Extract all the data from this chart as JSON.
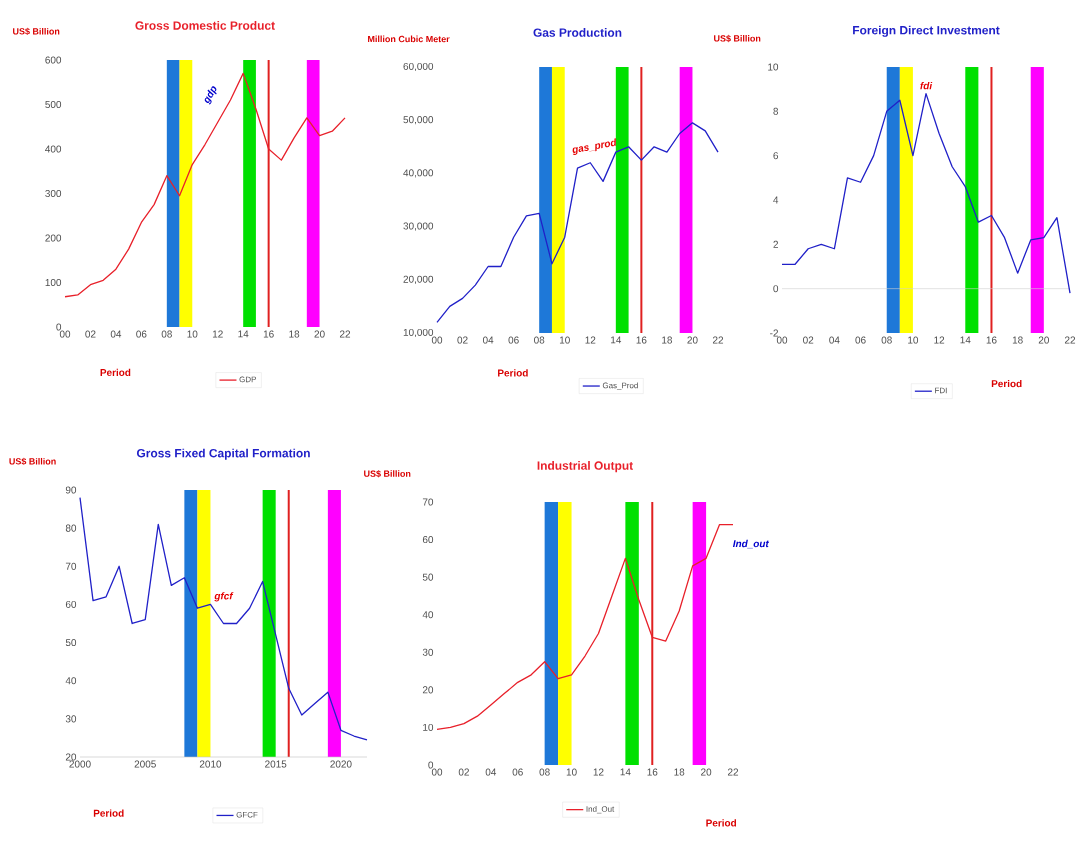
{
  "chart_data": [
    {
      "type": "line",
      "title": "Gross Domestic Product",
      "ylabel": "US$ Billion",
      "xlabel": "Period",
      "legend": "bottom",
      "marker": "none",
      "x": [
        2000,
        2001,
        2002,
        2003,
        2004,
        2005,
        2006,
        2007,
        2008,
        2009,
        2010,
        2011,
        2012,
        2013,
        2014,
        2015,
        2016,
        2017,
        2018,
        2019,
        2020,
        2021,
        2022
      ],
      "xlim": [
        2000,
        2022
      ],
      "xticks": [
        {
          "value": 2000,
          "label": "00"
        },
        {
          "value": 2002,
          "label": "02"
        },
        {
          "value": 2004,
          "label": "04"
        },
        {
          "value": 2006,
          "label": "06"
        },
        {
          "value": 2008,
          "label": "08"
        },
        {
          "value": 2010,
          "label": "10"
        },
        {
          "value": 2012,
          "label": "12"
        },
        {
          "value": 2014,
          "label": "14"
        },
        {
          "value": 2016,
          "label": "16"
        },
        {
          "value": 2018,
          "label": "18"
        },
        {
          "value": 2020,
          "label": "20"
        },
        {
          "value": 2022,
          "label": "22"
        }
      ],
      "ylim": [
        0,
        600
      ],
      "yticks": [
        0,
        100,
        200,
        300,
        400,
        500,
        600
      ],
      "series": [
        {
          "name": "GDP",
          "color": "#e8202a",
          "values": [
            68,
            72,
            95,
            105,
            130,
            175,
            235,
            275,
            340,
            295,
            365,
            410,
            460,
            510,
            570,
            490,
            400,
            375,
            425,
            470,
            430,
            440,
            470
          ]
        }
      ],
      "bands": [
        {
          "axis": "x",
          "from": 2008,
          "to": 2009,
          "color": "#1e78d8"
        },
        {
          "axis": "x",
          "from": 2009,
          "to": 2010,
          "color": "#ffff00"
        },
        {
          "axis": "x",
          "from": 2014,
          "to": 2015,
          "color": "#00e000"
        },
        {
          "axis": "x",
          "from": 2019,
          "to": 2020,
          "color": "#ff00ff"
        }
      ],
      "ref_lines": [
        {
          "axis": "x",
          "value": 2016,
          "color": "#e02020"
        }
      ],
      "annotations": [
        "gdp"
      ]
    },
    {
      "type": "line",
      "title": "Gas Production",
      "ylabel": "Million Cubic Meter",
      "xlabel": "Period",
      "legend": "bottom",
      "marker": "none",
      "x": [
        2000,
        2001,
        2002,
        2003,
        2004,
        2005,
        2006,
        2007,
        2008,
        2009,
        2010,
        2011,
        2012,
        2013,
        2014,
        2015,
        2016,
        2017,
        2018,
        2019,
        2020,
        2021,
        2022
      ],
      "xlim": [
        2000,
        2022
      ],
      "xticks": [
        {
          "value": 2000,
          "label": "00"
        },
        {
          "value": 2002,
          "label": "02"
        },
        {
          "value": 2004,
          "label": "04"
        },
        {
          "value": 2006,
          "label": "06"
        },
        {
          "value": 2008,
          "label": "08"
        },
        {
          "value": 2010,
          "label": "10"
        },
        {
          "value": 2012,
          "label": "12"
        },
        {
          "value": 2014,
          "label": "14"
        },
        {
          "value": 2016,
          "label": "16"
        },
        {
          "value": 2018,
          "label": "18"
        },
        {
          "value": 2020,
          "label": "20"
        },
        {
          "value": 2022,
          "label": "22"
        }
      ],
      "ylim": [
        10000,
        60000
      ],
      "yticks": [
        {
          "value": 10000,
          "label": "10,000"
        },
        {
          "value": 20000,
          "label": "20,000"
        },
        {
          "value": 30000,
          "label": "30,000"
        },
        {
          "value": 40000,
          "label": "40,000"
        },
        {
          "value": 50000,
          "label": "50,000"
        },
        {
          "value": 60000,
          "label": "60,000"
        }
      ],
      "series": [
        {
          "name": "Gas_Prod",
          "color": "#2020c8",
          "values": [
            12000,
            15000,
            16500,
            19000,
            22500,
            22500,
            28000,
            32000,
            32500,
            23000,
            28000,
            41000,
            42000,
            38500,
            44000,
            45000,
            42500,
            45000,
            44000,
            47500,
            49500,
            48000,
            44000
          ]
        }
      ],
      "bands": [
        {
          "axis": "x",
          "from": 2008,
          "to": 2009,
          "color": "#1e78d8"
        },
        {
          "axis": "x",
          "from": 2009,
          "to": 2010,
          "color": "#ffff00"
        },
        {
          "axis": "x",
          "from": 2014,
          "to": 2015,
          "color": "#00e000"
        },
        {
          "axis": "x",
          "from": 2019,
          "to": 2020,
          "color": "#ff00ff"
        }
      ],
      "ref_lines": [
        {
          "axis": "x",
          "value": 2016,
          "color": "#e02020"
        }
      ],
      "annotations": [
        "gas_prod"
      ]
    },
    {
      "type": "line",
      "title": "Foreign Direct Investment",
      "ylabel": "US$ Billion",
      "xlabel": "Period",
      "legend": "bottom",
      "marker": "none",
      "x": [
        2000,
        2001,
        2002,
        2003,
        2004,
        2005,
        2006,
        2007,
        2008,
        2009,
        2010,
        2011,
        2012,
        2013,
        2014,
        2015,
        2016,
        2017,
        2018,
        2019,
        2020,
        2021,
        2022
      ],
      "xlim": [
        2000,
        2022
      ],
      "xticks": [
        {
          "value": 2000,
          "label": "00"
        },
        {
          "value": 2002,
          "label": "02"
        },
        {
          "value": 2004,
          "label": "04"
        },
        {
          "value": 2006,
          "label": "06"
        },
        {
          "value": 2008,
          "label": "08"
        },
        {
          "value": 2010,
          "label": "10"
        },
        {
          "value": 2012,
          "label": "12"
        },
        {
          "value": 2014,
          "label": "14"
        },
        {
          "value": 2016,
          "label": "16"
        },
        {
          "value": 2018,
          "label": "18"
        },
        {
          "value": 2020,
          "label": "20"
        },
        {
          "value": 2022,
          "label": "22"
        }
      ],
      "ylim": [
        -2,
        10
      ],
      "yticks": [
        -2,
        0,
        2,
        4,
        6,
        8,
        10
      ],
      "series": [
        {
          "name": "FDI",
          "color": "#2020c8",
          "values": [
            1.1,
            1.1,
            1.8,
            2.0,
            1.8,
            5.0,
            4.8,
            6.0,
            8.0,
            8.5,
            6.0,
            8.8,
            7.0,
            5.5,
            4.6,
            3.0,
            3.3,
            2.3,
            0.7,
            2.2,
            2.3,
            3.2,
            -0.2
          ]
        }
      ],
      "bands": [
        {
          "axis": "x",
          "from": 2008,
          "to": 2009,
          "color": "#1e78d8"
        },
        {
          "axis": "x",
          "from": 2009,
          "to": 2010,
          "color": "#ffff00"
        },
        {
          "axis": "x",
          "from": 2014,
          "to": 2015,
          "color": "#00e000"
        },
        {
          "axis": "x",
          "from": 2019,
          "to": 2020,
          "color": "#ff00ff"
        }
      ],
      "ref_lines": [
        {
          "axis": "x",
          "value": 2016,
          "color": "#e02020"
        },
        {
          "axis": "y",
          "value": 0,
          "color": "#d0d0d0"
        }
      ],
      "annotations": [
        "fdi"
      ]
    },
    {
      "type": "line",
      "title": "Gross Fixed Capital Formation",
      "ylabel": "US$ Billion",
      "xlabel": "Period",
      "legend": "bottom",
      "marker": "none",
      "x": [
        2000,
        2001,
        2002,
        2003,
        2004,
        2005,
        2006,
        2007,
        2008,
        2009,
        2010,
        2011,
        2012,
        2013,
        2014,
        2015,
        2016,
        2017,
        2018,
        2019,
        2020,
        2021,
        2022
      ],
      "xlim": [
        2000,
        2022
      ],
      "xticks": [
        2000,
        2005,
        2010,
        2015,
        2020
      ],
      "ylim": [
        20,
        90
      ],
      "yticks": [
        20,
        30,
        40,
        50,
        60,
        70,
        80,
        90
      ],
      "series": [
        {
          "name": "GFCF",
          "color": "#2020c8",
          "values": [
            88,
            61,
            62,
            70,
            55,
            56,
            81,
            65,
            67,
            59,
            60,
            55,
            55,
            59,
            66,
            52,
            38,
            31,
            34,
            37,
            27,
            25.5,
            24.5
          ]
        }
      ],
      "bands": [
        {
          "axis": "x",
          "from": 2008,
          "to": 2009,
          "color": "#1e78d8"
        },
        {
          "axis": "x",
          "from": 2009,
          "to": 2010,
          "color": "#ffff00"
        },
        {
          "axis": "x",
          "from": 2014,
          "to": 2015,
          "color": "#00e000"
        },
        {
          "axis": "x",
          "from": 2019,
          "to": 2020,
          "color": "#ff00ff"
        }
      ],
      "ref_lines": [
        {
          "axis": "x",
          "value": 2016,
          "color": "#e02020"
        }
      ],
      "annotations": [
        "gfcf"
      ]
    },
    {
      "type": "line",
      "title": "Industrial Output",
      "ylabel": "US$ Billion",
      "xlabel": "Period",
      "legend": "bottom",
      "marker": "none",
      "x": [
        2000,
        2001,
        2002,
        2003,
        2004,
        2005,
        2006,
        2007,
        2008,
        2009,
        2010,
        2011,
        2012,
        2013,
        2014,
        2015,
        2016,
        2017,
        2018,
        2019,
        2020,
        2021,
        2022
      ],
      "xlim": [
        2000,
        2022
      ],
      "xticks": [
        {
          "value": 2000,
          "label": "00"
        },
        {
          "value": 2002,
          "label": "02"
        },
        {
          "value": 2004,
          "label": "04"
        },
        {
          "value": 2006,
          "label": "06"
        },
        {
          "value": 2008,
          "label": "08"
        },
        {
          "value": 2010,
          "label": "10"
        },
        {
          "value": 2012,
          "label": "12"
        },
        {
          "value": 2014,
          "label": "14"
        },
        {
          "value": 2016,
          "label": "16"
        },
        {
          "value": 2018,
          "label": "18"
        },
        {
          "value": 2020,
          "label": "20"
        },
        {
          "value": 2022,
          "label": "22"
        }
      ],
      "ylim": [
        0,
        70
      ],
      "yticks": [
        0,
        10,
        20,
        30,
        40,
        50,
        60,
        70
      ],
      "series": [
        {
          "name": "Ind_Out",
          "color": "#e8202a",
          "values": [
            9.5,
            10,
            11,
            13,
            16,
            19,
            22,
            24,
            27.5,
            23,
            24,
            29,
            35,
            45,
            55,
            44,
            34,
            33,
            41,
            53,
            55,
            64,
            64
          ]
        }
      ],
      "bands": [
        {
          "axis": "x",
          "from": 2008,
          "to": 2009,
          "color": "#1e78d8"
        },
        {
          "axis": "x",
          "from": 2009,
          "to": 2010,
          "color": "#ffff00"
        },
        {
          "axis": "x",
          "from": 2014,
          "to": 2015,
          "color": "#00e000"
        },
        {
          "axis": "x",
          "from": 2019,
          "to": 2020,
          "color": "#ff00ff"
        }
      ],
      "ref_lines": [
        {
          "axis": "x",
          "value": 2016,
          "color": "#e02020"
        }
      ],
      "annotations": [
        "Ind_out"
      ]
    }
  ]
}
